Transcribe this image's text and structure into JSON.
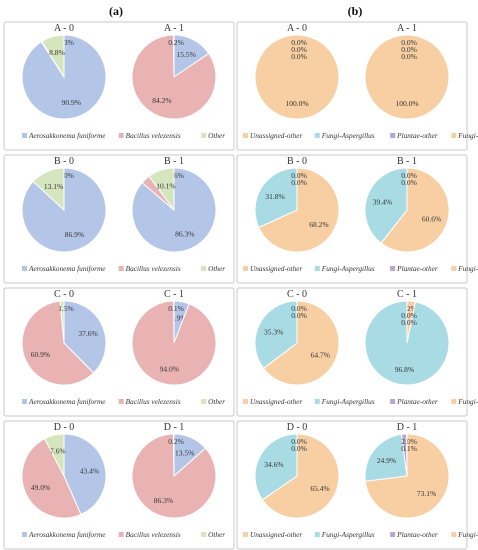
{
  "panel_labels": {
    "a": "(a)",
    "b": "(b)"
  },
  "colors": {
    "blue": "#b4c6e7",
    "red": "#e9b3b3",
    "green": "#d5e5bd",
    "orange": "#f7cfa3",
    "cyan": "#a9dbe5",
    "purple": "#b8a6cf",
    "slice_stroke": "#ffffff",
    "panel_border": "#c8c8c8",
    "text": "#333333"
  },
  "legends": {
    "a": [
      {
        "label": "Aerosakkonema funiforme",
        "color_key": "blue"
      },
      {
        "label": "Bacillus velezensis",
        "color_key": "red"
      },
      {
        "label": "Other",
        "color_key": "green"
      }
    ],
    "b": [
      {
        "label": "Unassigned-other",
        "color_key": "orange"
      },
      {
        "label": "Fungi-Aspergillus",
        "color_key": "cyan"
      },
      {
        "label": "Plantae-other",
        "color_key": "purple"
      },
      {
        "label": "Fungi-other",
        "color_key": "orange"
      }
    ]
  },
  "chart_data": [
    {
      "type": "pie",
      "panel": "a",
      "row": 0,
      "col": 0,
      "title": "A - 0",
      "series": [
        {
          "name": "Aerosakkonema funiforme",
          "value": 90.9,
          "label": "90.9%",
          "color_key": "blue"
        },
        {
          "name": "Bacillus velezensis",
          "value": 0.3,
          "label": "0.3%",
          "color_key": "red"
        },
        {
          "name": "Other",
          "value": 8.8,
          "label": "8.8%",
          "color_key": "green"
        }
      ]
    },
    {
      "type": "pie",
      "panel": "a",
      "row": 0,
      "col": 1,
      "title": "A - 1",
      "series": [
        {
          "name": "Aerosakkonema funiforme",
          "value": 15.5,
          "label": "15.5%",
          "color_key": "blue"
        },
        {
          "name": "Bacillus velezensis",
          "value": 84.2,
          "label": "84.2%",
          "color_key": "red"
        },
        {
          "name": "Other",
          "value": 0.2,
          "label": "0.2%",
          "color_key": "green"
        }
      ]
    },
    {
      "type": "pie",
      "panel": "b",
      "row": 0,
      "col": 0,
      "title": "A - 0",
      "series": [
        {
          "name": "Unassigned-other",
          "value": 100.0,
          "label": "100.0%",
          "color_key": "orange"
        },
        {
          "name": "Fungi-Aspergillus",
          "value": 0.0,
          "label": "0.0%",
          "color_key": "cyan"
        },
        {
          "name": "Plantae-other",
          "value": 0.0,
          "label": "0.0%",
          "color_key": "purple"
        },
        {
          "name": "Fungi-other",
          "value": 0.0,
          "label": "0.0%",
          "color_key": "orange"
        }
      ]
    },
    {
      "type": "pie",
      "panel": "b",
      "row": 0,
      "col": 1,
      "title": "A - 1",
      "series": [
        {
          "name": "Unassigned-other",
          "value": 100.0,
          "label": "100.0%",
          "color_key": "orange"
        },
        {
          "name": "Fungi-Aspergillus",
          "value": 0.0,
          "label": "0.0%",
          "color_key": "cyan"
        },
        {
          "name": "Plantae-other",
          "value": 0.0,
          "label": "0.0%",
          "color_key": "purple"
        },
        {
          "name": "Fungi-other",
          "value": 0.0,
          "label": "0.0%",
          "color_key": "orange"
        }
      ]
    },
    {
      "type": "pie",
      "panel": "a",
      "row": 1,
      "col": 0,
      "title": "B - 0",
      "series": [
        {
          "name": "Aerosakkonema funiforme",
          "value": 86.9,
          "label": "86.9%",
          "color_key": "blue"
        },
        {
          "name": "Bacillus velezensis",
          "value": 0.0,
          "label": "0.0%",
          "color_key": "red"
        },
        {
          "name": "Other",
          "value": 13.1,
          "label": "13.1%",
          "color_key": "green"
        }
      ]
    },
    {
      "type": "pie",
      "panel": "a",
      "row": 1,
      "col": 1,
      "title": "B - 1",
      "series": [
        {
          "name": "Aerosakkonema funiforme",
          "value": 86.3,
          "label": "86.3%",
          "color_key": "blue"
        },
        {
          "name": "Bacillus velezensis",
          "value": 3.6,
          "label": "3.6%",
          "color_key": "red"
        },
        {
          "name": "Other",
          "value": 10.1,
          "label": "10.1%",
          "color_key": "green"
        }
      ]
    },
    {
      "type": "pie",
      "panel": "b",
      "row": 1,
      "col": 0,
      "title": "B - 0",
      "series": [
        {
          "name": "Unassigned-other",
          "value": 68.2,
          "label": "68.2%",
          "color_key": "orange"
        },
        {
          "name": "Fungi-Aspergillus",
          "value": 31.8,
          "label": "31.8%",
          "color_key": "cyan"
        },
        {
          "name": "Plantae-other",
          "value": 0.0,
          "label": "0.0%",
          "color_key": "purple"
        },
        {
          "name": "Fungi-other",
          "value": 0.0,
          "label": "0.0%",
          "color_key": "orange"
        }
      ]
    },
    {
      "type": "pie",
      "panel": "b",
      "row": 1,
      "col": 1,
      "title": "B - 1",
      "series": [
        {
          "name": "Unassigned-other",
          "value": 60.6,
          "label": "60.6%",
          "color_key": "orange"
        },
        {
          "name": "Fungi-Aspergillus",
          "value": 39.4,
          "label": "39.4%",
          "color_key": "cyan"
        },
        {
          "name": "Plantae-other",
          "value": 0.0,
          "label": "0.0%",
          "color_key": "purple"
        },
        {
          "name": "Fungi-other",
          "value": 0.0,
          "label": "0.0%",
          "color_key": "orange"
        }
      ]
    },
    {
      "type": "pie",
      "panel": "a",
      "row": 2,
      "col": 0,
      "title": "C - 0",
      "series": [
        {
          "name": "Aerosakkonema funiforme",
          "value": 37.6,
          "label": "37.6%",
          "color_key": "blue"
        },
        {
          "name": "Bacillus velezensis",
          "value": 60.9,
          "label": "60.9%",
          "color_key": "red"
        },
        {
          "name": "Other",
          "value": 1.5,
          "label": "1.5%",
          "color_key": "green"
        }
      ]
    },
    {
      "type": "pie",
      "panel": "a",
      "row": 2,
      "col": 1,
      "title": "C - 1",
      "series": [
        {
          "name": "Aerosakkonema funiforme",
          "value": 5.9,
          "label": "5.9%",
          "color_key": "blue"
        },
        {
          "name": "Bacillus velezensis",
          "value": 94.0,
          "label": "94.0%",
          "color_key": "red"
        },
        {
          "name": "Other",
          "value": 0.1,
          "label": "0.1%",
          "color_key": "green"
        }
      ]
    },
    {
      "type": "pie",
      "panel": "b",
      "row": 2,
      "col": 0,
      "title": "C - 0",
      "series": [
        {
          "name": "Unassigned-other",
          "value": 64.7,
          "label": "64.7%",
          "color_key": "orange"
        },
        {
          "name": "Fungi-Aspergillus",
          "value": 35.3,
          "label": "35.3%",
          "color_key": "cyan"
        },
        {
          "name": "Plantae-other",
          "value": 0.0,
          "label": "0.0%",
          "color_key": "purple"
        },
        {
          "name": "Fungi-other",
          "value": 0.0,
          "label": "0.0%",
          "color_key": "orange"
        }
      ]
    },
    {
      "type": "pie",
      "panel": "b",
      "row": 2,
      "col": 1,
      "title": "C - 1",
      "series": [
        {
          "name": "Unassigned-other",
          "value": 3.2,
          "label": "3.2%",
          "color_key": "orange"
        },
        {
          "name": "Fungi-Aspergillus",
          "value": 96.8,
          "label": "96.8%",
          "color_key": "cyan"
        },
        {
          "name": "Plantae-other",
          "value": 0.0,
          "label": "0.0%",
          "color_key": "purple"
        },
        {
          "name": "Fungi-other",
          "value": 0.0,
          "label": "0.0%",
          "color_key": "orange"
        }
      ]
    },
    {
      "type": "pie",
      "panel": "a",
      "row": 3,
      "col": 0,
      "title": "D - 0",
      "series": [
        {
          "name": "Aerosakkonema funiforme",
          "value": 43.4,
          "label": "43.4%",
          "color_key": "blue"
        },
        {
          "name": "Bacillus velezensis",
          "value": 49.0,
          "label": "49.0%",
          "color_key": "red"
        },
        {
          "name": "Other",
          "value": 7.6,
          "label": "7.6%",
          "color_key": "green"
        }
      ]
    },
    {
      "type": "pie",
      "panel": "a",
      "row": 3,
      "col": 1,
      "title": "D - 1",
      "series": [
        {
          "name": "Aerosakkonema funiforme",
          "value": 13.5,
          "label": "13.5%",
          "color_key": "blue"
        },
        {
          "name": "Bacillus velezensis",
          "value": 86.3,
          "label": "86.3%",
          "color_key": "red"
        },
        {
          "name": "Other",
          "value": 0.2,
          "label": "0.2%",
          "color_key": "green"
        }
      ]
    },
    {
      "type": "pie",
      "panel": "b",
      "row": 3,
      "col": 0,
      "title": "D - 0",
      "series": [
        {
          "name": "Unassigned-other",
          "value": 65.4,
          "label": "65.4%",
          "color_key": "orange"
        },
        {
          "name": "Fungi-Aspergillus",
          "value": 34.6,
          "label": "34.6%",
          "color_key": "cyan"
        },
        {
          "name": "Plantae-other",
          "value": 0.0,
          "label": "0.0%",
          "color_key": "purple"
        },
        {
          "name": "Fungi-other",
          "value": 0.0,
          "label": "0.0%",
          "color_key": "orange"
        }
      ]
    },
    {
      "type": "pie",
      "panel": "b",
      "row": 3,
      "col": 1,
      "title": "D - 1",
      "series": [
        {
          "name": "Unassigned-other",
          "value": 73.1,
          "label": "73.1%",
          "color_key": "orange"
        },
        {
          "name": "Fungi-Aspergillus",
          "value": 24.9,
          "label": "24.9%",
          "color_key": "cyan"
        },
        {
          "name": "Plantae-other",
          "value": 2.0,
          "label": "2.0%",
          "color_key": "purple"
        },
        {
          "name": "Fungi-other",
          "value": 0.1,
          "label": "0.1%",
          "color_key": "orange"
        }
      ]
    }
  ]
}
